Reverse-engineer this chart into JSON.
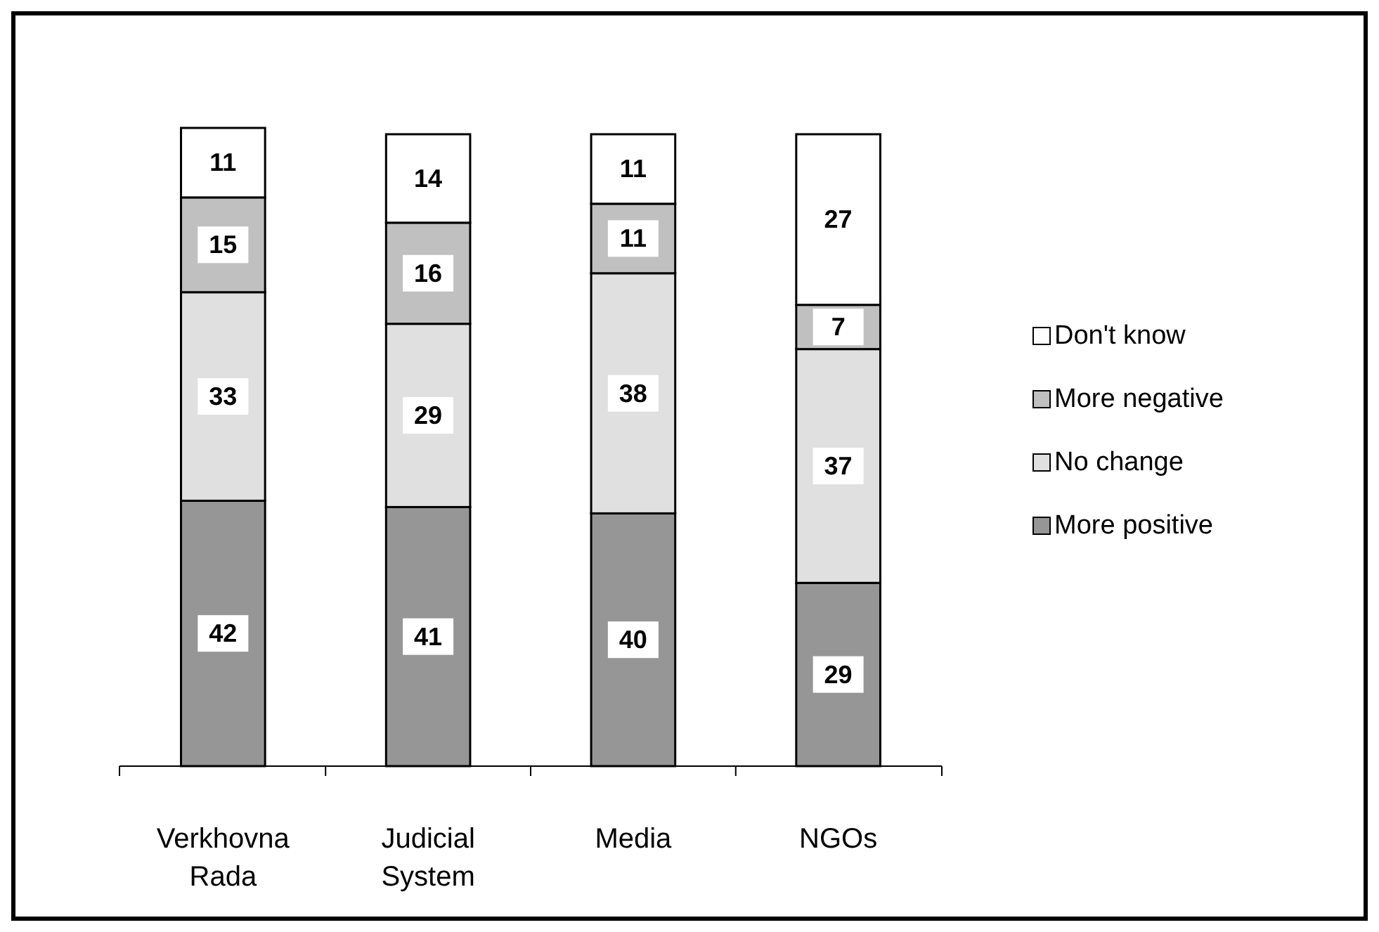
{
  "chart_data": {
    "type": "bar",
    "stacked": true,
    "categories": [
      "Verkhovna Rada",
      "Judicial System",
      "Media",
      "NGOs"
    ],
    "series": [
      {
        "name": "More positive",
        "color": "#969696",
        "values": [
          42,
          41,
          40,
          29
        ]
      },
      {
        "name": "No change",
        "color": "#e0e0e0",
        "values": [
          33,
          29,
          38,
          37
        ]
      },
      {
        "name": "More negative",
        "color": "#c0c0c0",
        "values": [
          15,
          16,
          11,
          7
        ]
      },
      {
        "name": "Don't know",
        "color": "#ffffff",
        "values": [
          11,
          14,
          11,
          27
        ]
      }
    ],
    "data_labels": true,
    "legend": "right"
  }
}
